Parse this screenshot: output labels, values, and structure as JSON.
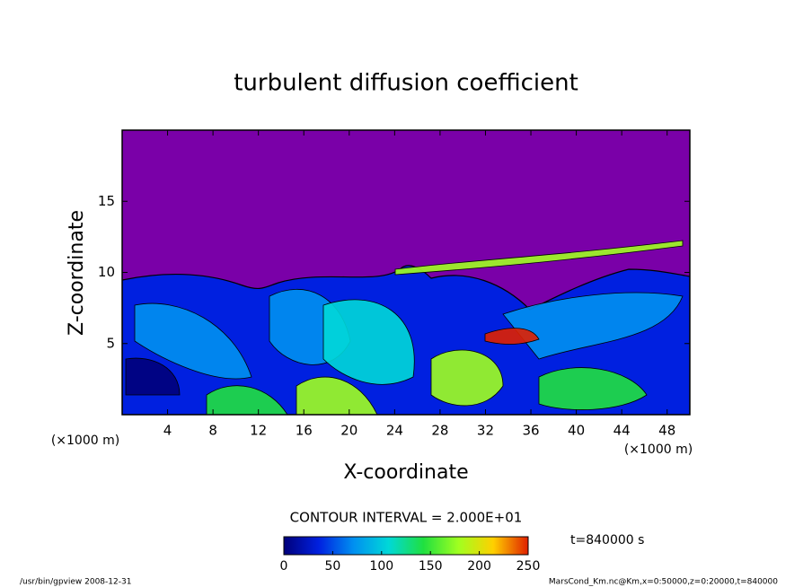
{
  "chart_data": {
    "type": "contour",
    "title": "turbulent diffusion coefficient",
    "xlabel": "X-coordinate",
    "ylabel": "Z-coordinate",
    "xunit": "(×1000 m)",
    "yunit": "(×1000 m)",
    "xlim": [
      0,
      50
    ],
    "ylim": [
      0,
      20
    ],
    "xticks": [
      4,
      8,
      12,
      16,
      20,
      24,
      28,
      32,
      36,
      40,
      44,
      48
    ],
    "yticks": [
      5,
      10,
      15
    ],
    "contour_interval": "CONTOUR INTERVAL = 2.000E+01",
    "time": "t=840000 s",
    "colorbar": {
      "lim": [
        0,
        250
      ],
      "ticks": [
        0,
        50,
        100,
        150,
        200,
        250
      ],
      "colors": [
        "#7a00a8",
        "#00007a",
        "#0020e0",
        "#0090f0",
        "#00d8d8",
        "#20e040",
        "#a0ff20",
        "#ffd000",
        "#e02000"
      ]
    },
    "footer_left": "/usr/bin/gpview   2008-12-31",
    "footer_right": "MarsCond_Km.nc@Km,x=0:50000,z=0:20000,t=840000"
  }
}
